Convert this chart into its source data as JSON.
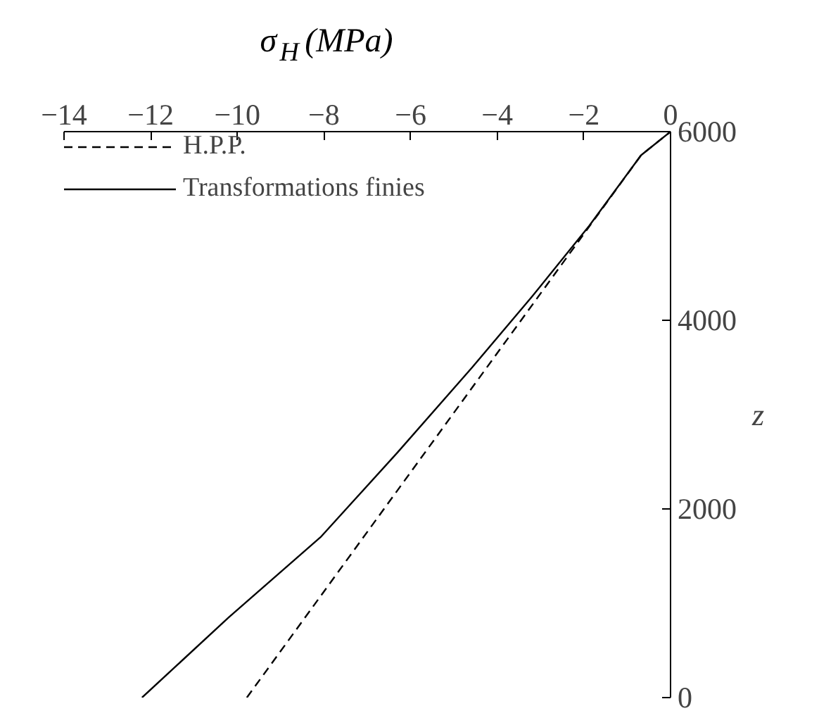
{
  "chart_data": {
    "type": "line",
    "xlabel": "σ$_{H}$ (MPa)",
    "ylabel": "z",
    "xlim": [
      -14,
      0
    ],
    "ylim": [
      0,
      6000
    ],
    "xticks": [
      -14,
      -12,
      -10,
      -8,
      -6,
      -4,
      -2,
      0
    ],
    "yticks": [
      0,
      2000,
      4000,
      6000
    ],
    "grid": false,
    "legend": "top left",
    "series": [
      {
        "name": "H.P.P.",
        "color": "#000000",
        "line_style": "dashed",
        "x": [
          -9.78,
          -0.68,
          0
        ],
        "values": [
          0,
          5750,
          6000
        ]
      },
      {
        "name": "Transformations finies",
        "color": "#000000",
        "line_style": "solid",
        "x": [
          -12.2,
          -10.2,
          -8.08,
          -6.3,
          -4.58,
          -3.2,
          -1.88,
          -0.68,
          0
        ],
        "values": [
          0,
          850,
          1700,
          2600,
          3500,
          4250,
          5000,
          5750,
          6000
        ]
      }
    ]
  }
}
